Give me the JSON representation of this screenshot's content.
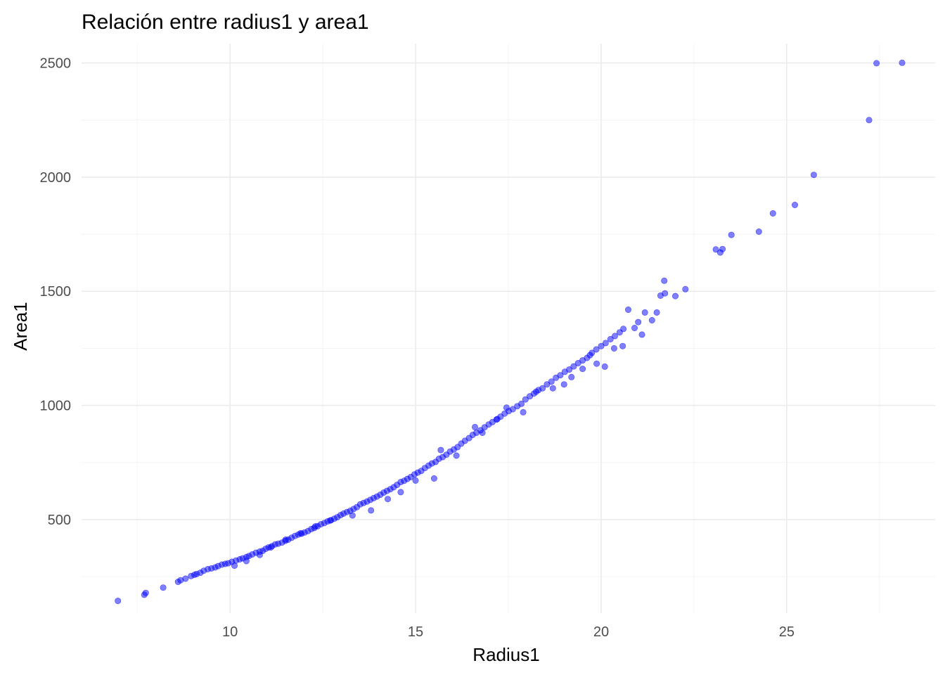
{
  "chart_data": {
    "type": "scatter",
    "title": "Relación entre radius1 y area1",
    "xlabel": "Radius1",
    "ylabel": "Area1",
    "xlim": [
      6.0,
      29.0
    ],
    "ylim": [
      90,
      2585
    ],
    "x_ticks": [
      10,
      15,
      20,
      25
    ],
    "y_ticks": [
      500,
      1000,
      1500,
      2000,
      2500
    ],
    "grid": true,
    "point_color": "#0000ff",
    "point_opacity": 0.5,
    "series": [
      {
        "x": [
          6.98,
          7.69,
          7.73,
          8.2,
          8.6,
          8.67,
          8.8,
          8.95,
          9.04,
          9.1,
          9.2,
          9.29,
          9.4,
          9.5,
          9.6,
          9.68,
          9.78,
          9.87,
          9.95,
          10.05,
          10.16,
          10.26,
          10.34,
          10.44,
          10.51,
          10.6,
          10.7,
          10.8,
          10.88,
          10.96,
          11.04,
          11.13,
          11.22,
          11.3,
          11.4,
          11.49,
          11.57,
          11.66,
          11.75,
          11.84,
          11.93,
          12.01,
          12.1,
          12.19,
          12.27,
          12.36,
          12.45,
          12.54,
          12.63,
          12.72,
          12.81,
          12.89,
          12.98,
          13.06,
          13.15,
          13.24,
          13.33,
          13.42,
          13.51,
          13.6,
          13.69,
          13.78,
          13.87,
          13.96,
          14.05,
          14.14,
          14.23,
          14.32,
          14.41,
          14.5,
          14.6,
          14.69,
          14.78,
          14.87,
          14.97,
          15.06,
          15.15,
          15.25,
          15.35,
          15.44,
          15.54,
          15.63,
          15.73,
          15.83,
          15.93,
          16.03,
          16.13,
          16.23,
          16.33,
          16.44,
          16.54,
          16.64,
          16.75,
          16.86,
          16.97,
          17.07,
          17.18,
          17.29,
          17.4,
          17.51,
          17.62,
          17.74,
          17.85,
          17.96,
          18.08,
          18.19,
          18.31,
          18.42,
          18.54,
          18.66,
          18.78,
          18.9,
          19.02,
          19.14,
          19.26,
          19.38,
          19.5,
          19.62,
          19.75,
          19.87,
          20.0,
          20.12,
          20.25,
          20.37,
          20.5,
          20.6,
          10.12,
          10.44,
          10.8,
          11.1,
          11.5,
          11.9,
          12.3,
          12.7,
          13.3,
          13.8,
          14.25,
          14.6,
          15.0,
          15.5,
          15.68,
          16.1,
          16.6,
          16.8,
          17.2,
          17.45,
          17.9,
          18.25,
          18.7,
          19.0,
          19.2,
          19.5,
          19.7,
          19.88,
          20.1,
          20.35,
          20.58,
          20.73,
          20.9,
          21.0,
          21.1,
          21.18,
          21.37,
          21.6,
          21.7,
          21.72,
          22.0,
          21.5,
          22.27,
          23.09,
          23.21,
          23.27,
          23.51,
          24.25,
          24.63,
          25.22,
          25.73,
          27.22,
          27.42,
          28.11
        ],
        "y": [
          143.5,
          170.4,
          178.8,
          201.9,
          227.2,
          234.3,
          241.0,
          252.3,
          257.8,
          261.3,
          266.9,
          275.6,
          282.6,
          285.8,
          290.1,
          296.0,
          302.4,
          305.6,
          308.5,
          315.0,
          320.4,
          325.6,
          330.1,
          335.8,
          340.0,
          347.3,
          354.7,
          359.4,
          363.0,
          371.4,
          377.6,
          383.1,
          391.1,
          394.4,
          398.8,
          406.5,
          411.9,
          420.3,
          428.1,
          434.4,
          438.1,
          443.4,
          449.6,
          458.3,
          463.1,
          470.6,
          479.2,
          484.6,
          491.6,
          496.8,
          503.7,
          510.2,
          519.4,
          526.2,
          532.8,
          538.1,
          546.3,
          554.4,
          566.7,
          572.6,
          578.9,
          586.2,
          594.0,
          600.8,
          608.8,
          618.0,
          625.6,
          632.9,
          641.3,
          651.9,
          664.2,
          669.6,
          677.9,
          686.2,
          697.7,
          705.6,
          712.8,
          725.5,
          736.3,
          745.9,
          752.6,
          766.0,
          773.5,
          784.1,
          797.9,
          806.9,
          817.2,
          832.8,
          845.0,
          856.8,
          870.8,
          880.4,
          891.2,
          904.2,
          916.3,
          927.0,
          938.0,
          950.7,
          964.2,
          975.1,
          983.2,
          996.6,
          1007.0,
          1026.0,
          1040.0,
          1052.0,
          1067.0,
          1075.0,
          1092.0,
          1104.0,
          1121.0,
          1132.0,
          1147.0,
          1157.0,
          1171.0,
          1185.0,
          1197.0,
          1208.0,
          1230.0,
          1245.0,
          1260.0,
          1273.0,
          1290.0,
          1304.0,
          1320.0,
          1335.0,
          298.0,
          318.0,
          345.0,
          378.0,
          412.0,
          440.0,
          470.0,
          496.0,
          518.0,
          540.0,
          590.0,
          620.0,
          671.0,
          680.0,
          804.2,
          780.0,
          905.0,
          880.0,
          940.0,
          990.0,
          970.0,
          1060.0,
          1075.0,
          1092.0,
          1124.0,
          1160.0,
          1220.0,
          1183.0,
          1170.0,
          1250.0,
          1260.0,
          1419.0,
          1339.0,
          1365.0,
          1310.0,
          1407.0,
          1373.0,
          1481.0,
          1546.0,
          1491.0,
          1479.0,
          1407.0,
          1509.0,
          1683.0,
          1670.0,
          1685.0,
          1747.0,
          1761.0,
          1841.0,
          1878.0,
          2010.0,
          2250.0,
          2499.0,
          2501.0
        ]
      }
    ]
  }
}
